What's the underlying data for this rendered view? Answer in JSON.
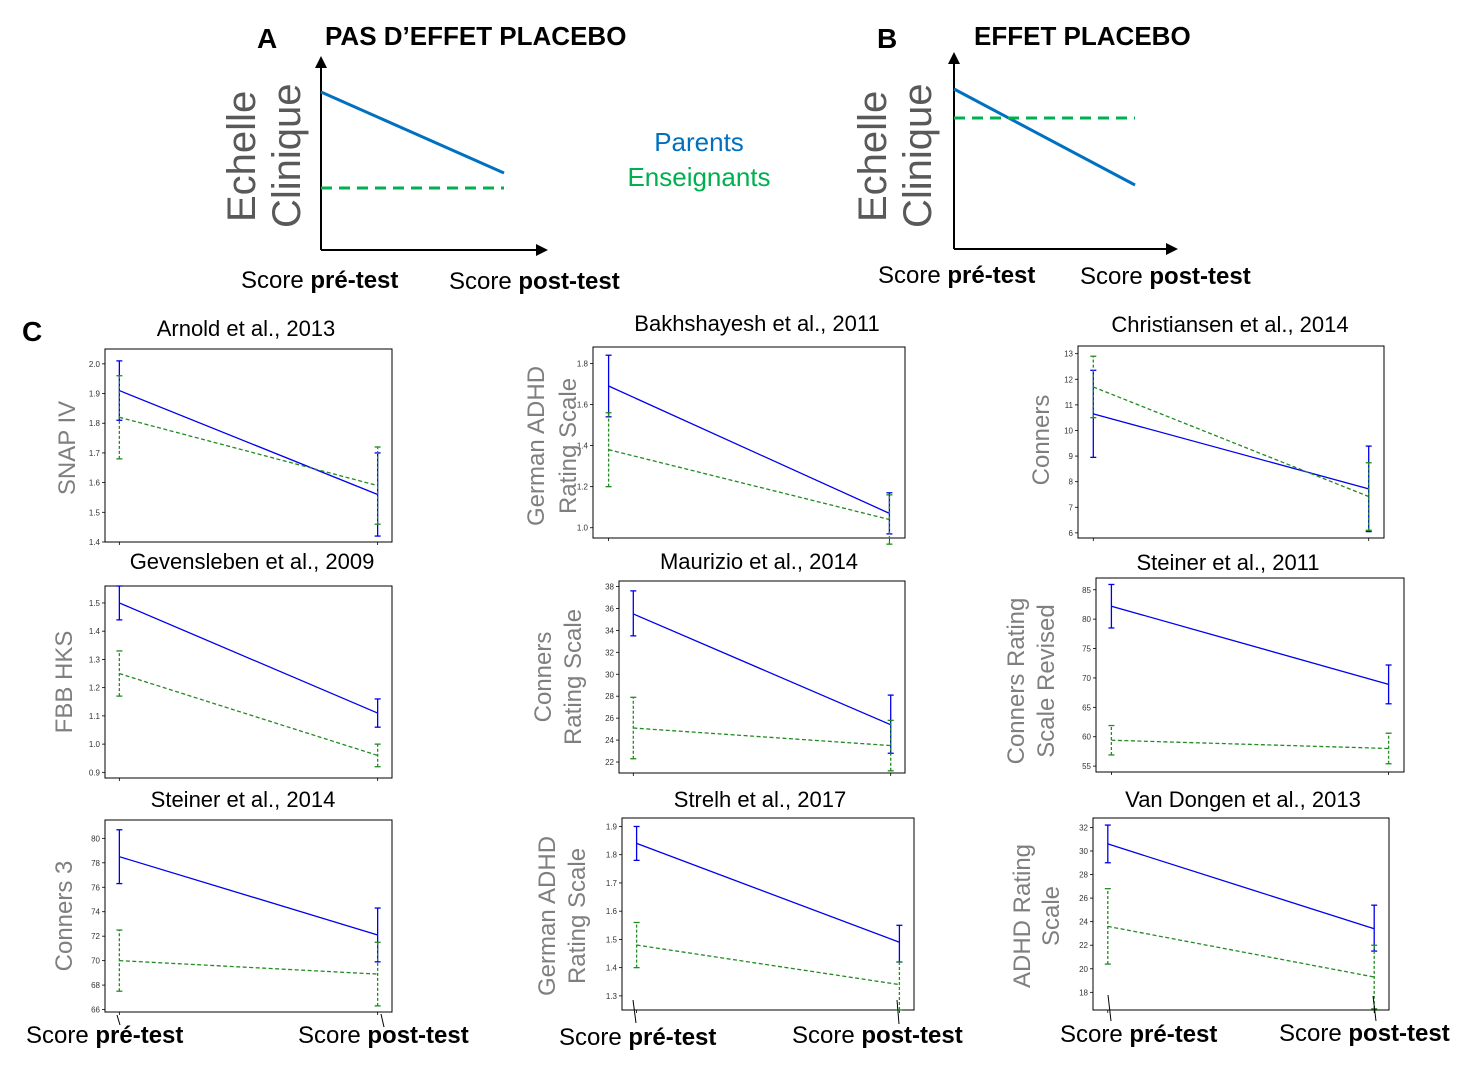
{
  "panels": {
    "A": {
      "letter": "A",
      "title": "PAS D’EFFET PLACEBO",
      "ylabel_line1": "Echelle",
      "ylabel_line2": "Clinique",
      "x_pre_prefix": "Score ",
      "x_pre_bold": "pré-test",
      "x_post_prefix": "Score ",
      "x_post_bold": "post-test"
    },
    "B": {
      "letter": "B",
      "title": "EFFET PLACEBO",
      "ylabel_line1": "Echelle",
      "ylabel_line2": "Clinique",
      "x_pre_prefix": "Score ",
      "x_pre_bold": "pré-test",
      "x_post_prefix": "Score ",
      "x_post_bold": "post-test"
    },
    "C": {
      "letter": "C"
    }
  },
  "legend": {
    "parents": "Parents",
    "enseignants": "Enseignants"
  },
  "bottom_labels": {
    "pre_prefix": "Score ",
    "pre_bold": "pré-test",
    "post_prefix": "Score ",
    "post_bold": "post-test"
  },
  "colors": {
    "parents": "#0070c0",
    "enseignants": "#00b050",
    "sub_parents": "#0000ee",
    "sub_teachers": "#228b22"
  },
  "chart_data": [
    {
      "type": "line",
      "title": "Arnold et al., 2013",
      "ylabel": "SNAP IV",
      "ylim": [
        1.4,
        2.05
      ],
      "yticks": [
        "1.4",
        "1.5",
        "1.6",
        "1.7",
        "1.8",
        "1.9",
        "2.0"
      ],
      "tickvals": [
        1.4,
        1.5,
        1.6,
        1.7,
        1.8,
        1.9,
        2.0
      ],
      "x": [
        "pré-test",
        "post-test"
      ],
      "series": [
        {
          "role": "parents",
          "values": [
            1.91,
            1.56
          ],
          "err_low": [
            1.81,
            1.42
          ],
          "err_high": [
            2.01,
            1.7
          ]
        },
        {
          "role": "teachers",
          "values": [
            1.82,
            1.59
          ],
          "err_low": [
            1.68,
            1.46
          ],
          "err_high": [
            1.96,
            1.72
          ]
        }
      ]
    },
    {
      "type": "line",
      "title": "Bakhshayesh et al., 2011",
      "ylabel": "German ADHD Rating Scale",
      "ylim": [
        0.95,
        1.88
      ],
      "yticks": [
        "1.0",
        "1.2",
        "1.4",
        "1.6",
        "1.8"
      ],
      "tickvals": [
        1.0,
        1.2,
        1.4,
        1.6,
        1.8
      ],
      "x": [
        "pré-test",
        "post-test"
      ],
      "series": [
        {
          "role": "parents",
          "values": [
            1.69,
            1.07
          ],
          "err_low": [
            1.54,
            0.97
          ],
          "err_high": [
            1.84,
            1.17
          ]
        },
        {
          "role": "teachers",
          "values": [
            1.38,
            1.04
          ],
          "err_low": [
            1.2,
            0.92
          ],
          "err_high": [
            1.56,
            1.16
          ]
        }
      ]
    },
    {
      "type": "line",
      "title": "Christiansen et al., 2014",
      "ylabel": "Conners",
      "ylim": [
        5.8,
        13.3
      ],
      "yticks": [
        "6",
        "7",
        "8",
        "9",
        "10",
        "11",
        "12",
        "13"
      ],
      "tickvals": [
        6,
        7,
        8,
        9,
        10,
        11,
        12,
        13
      ],
      "x": [
        "pré-test",
        "post-test"
      ],
      "series": [
        {
          "role": "parents",
          "values": [
            10.65,
            7.72
          ],
          "err_low": [
            8.95,
            6.05
          ],
          "err_high": [
            12.35,
            9.39
          ]
        },
        {
          "role": "teachers",
          "values": [
            11.7,
            7.42
          ],
          "err_low": [
            10.5,
            6.1
          ],
          "err_high": [
            12.9,
            8.74
          ]
        }
      ]
    },
    {
      "type": "line",
      "title": "Gevensleben et al., 2009",
      "ylabel": "FBB HKS",
      "ylim": [
        0.88,
        1.56
      ],
      "yticks": [
        "0.9",
        "1.0",
        "1.1",
        "1.2",
        "1.3",
        "1.4",
        "1.5"
      ],
      "tickvals": [
        0.9,
        1.0,
        1.1,
        1.2,
        1.3,
        1.4,
        1.5
      ],
      "x": [
        "pré-test",
        "post-test"
      ],
      "series": [
        {
          "role": "parents",
          "values": [
            1.5,
            1.11
          ],
          "err_low": [
            1.44,
            1.06
          ],
          "err_high": [
            1.56,
            1.16
          ]
        },
        {
          "role": "teachers",
          "values": [
            1.25,
            0.96
          ],
          "err_low": [
            1.17,
            0.92
          ],
          "err_high": [
            1.33,
            1.0
          ]
        }
      ]
    },
    {
      "type": "line",
      "title": "Maurizio et al., 2014",
      "ylabel": "Conners Rating Scale",
      "ylim": [
        21,
        38.5
      ],
      "yticks": [
        "22",
        "24",
        "26",
        "28",
        "30",
        "32",
        "34",
        "36",
        "38"
      ],
      "tickvals": [
        22,
        24,
        26,
        28,
        30,
        32,
        34,
        36,
        38
      ],
      "x": [
        "pré-test",
        "post-test"
      ],
      "series": [
        {
          "role": "parents",
          "values": [
            35.5,
            25.4
          ],
          "err_low": [
            33.5,
            22.8
          ],
          "err_high": [
            37.6,
            28.1
          ]
        },
        {
          "role": "teachers",
          "values": [
            25.1,
            23.5
          ],
          "err_low": [
            22.3,
            21.2
          ],
          "err_high": [
            27.9,
            25.8
          ]
        }
      ]
    },
    {
      "type": "line",
      "title": "Steiner et al., 2011",
      "ylabel": "Conners Rating Scale Revised",
      "ylim": [
        54,
        87
      ],
      "yticks": [
        "55",
        "60",
        "65",
        "70",
        "75",
        "80",
        "85"
      ],
      "tickvals": [
        55,
        60,
        65,
        70,
        75,
        80,
        85
      ],
      "x": [
        "pré-test",
        "post-test"
      ],
      "series": [
        {
          "role": "parents",
          "values": [
            82.2,
            68.9
          ],
          "err_low": [
            78.5,
            65.6
          ],
          "err_high": [
            85.9,
            72.2
          ]
        },
        {
          "role": "teachers",
          "values": [
            59.4,
            58.0
          ],
          "err_low": [
            56.9,
            55.4
          ],
          "err_high": [
            61.9,
            60.6
          ]
        }
      ]
    },
    {
      "type": "line",
      "title": "Steiner et al., 2014",
      "ylabel": "Conners 3",
      "ylim": [
        65.8,
        81.5
      ],
      "yticks": [
        "66",
        "68",
        "70",
        "72",
        "74",
        "76",
        "78",
        "80"
      ],
      "tickvals": [
        66,
        68,
        70,
        72,
        74,
        76,
        78,
        80
      ],
      "x": [
        "pré-test",
        "post-test"
      ],
      "series": [
        {
          "role": "parents",
          "values": [
            78.5,
            72.1
          ],
          "err_low": [
            76.3,
            69.9
          ],
          "err_high": [
            80.7,
            74.3
          ]
        },
        {
          "role": "teachers",
          "values": [
            70.0,
            68.9
          ],
          "err_low": [
            67.5,
            66.3
          ],
          "err_high": [
            72.5,
            71.5
          ]
        }
      ]
    },
    {
      "type": "line",
      "title": "Strelh et al., 2017",
      "ylabel": "German ADHD Rating Scale",
      "ylim": [
        1.25,
        1.93
      ],
      "yticks": [
        "1.3",
        "1.4",
        "1.5",
        "1.6",
        "1.7",
        "1.8",
        "1.9"
      ],
      "tickvals": [
        1.3,
        1.4,
        1.5,
        1.6,
        1.7,
        1.8,
        1.9
      ],
      "x": [
        "pré-test",
        "post-test"
      ],
      "series": [
        {
          "role": "parents",
          "values": [
            1.84,
            1.49
          ],
          "err_low": [
            1.78,
            1.42
          ],
          "err_high": [
            1.9,
            1.55
          ]
        },
        {
          "role": "teachers",
          "values": [
            1.48,
            1.34
          ],
          "err_low": [
            1.4,
            1.25
          ],
          "err_high": [
            1.56,
            1.42
          ]
        }
      ]
    },
    {
      "type": "line",
      "title": "Van Dongen et al., 2013",
      "ylabel": "ADHD Rating Scale",
      "ylim": [
        16.5,
        32.8
      ],
      "yticks": [
        "18",
        "20",
        "22",
        "24",
        "26",
        "28",
        "30",
        "32"
      ],
      "tickvals": [
        18,
        20,
        22,
        24,
        26,
        28,
        30,
        32
      ],
      "x": [
        "pré-test",
        "post-test"
      ],
      "series": [
        {
          "role": "parents",
          "values": [
            30.6,
            23.4
          ],
          "err_low": [
            29.0,
            21.5
          ],
          "err_high": [
            32.2,
            25.4
          ]
        },
        {
          "role": "teachers",
          "values": [
            23.6,
            19.3
          ],
          "err_low": [
            20.4,
            16.6
          ],
          "err_high": [
            26.8,
            22.0
          ]
        }
      ]
    }
  ]
}
